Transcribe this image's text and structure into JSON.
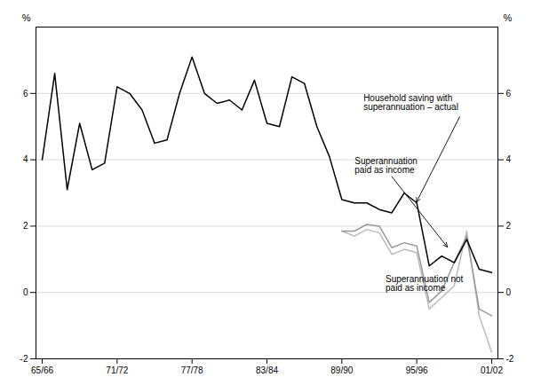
{
  "chart_data": {
    "type": "line",
    "xlim": [
      -0.5,
      36.5
    ],
    "xticks": [
      {
        "value": 0,
        "label": "65/66"
      },
      {
        "value": 6,
        "label": "71/72"
      },
      {
        "value": 12,
        "label": "77/78"
      },
      {
        "value": 18,
        "label": "83/84"
      },
      {
        "value": 24,
        "label": "89/90"
      },
      {
        "value": 30,
        "label": "95/96"
      },
      {
        "value": 36,
        "label": "01/02"
      }
    ],
    "ylim": [
      -2,
      8
    ],
    "yticks": [
      -2,
      0,
      2,
      4,
      6
    ],
    "ylabel": "%",
    "y2lim": [
      -2,
      8
    ],
    "y2ticks": [
      -2,
      0,
      2,
      4,
      6
    ],
    "y2label": "%",
    "grid": true,
    "series": [
      {
        "color": "#000000",
        "x": [
          0,
          1,
          2,
          3,
          4,
          5,
          6,
          7,
          8,
          9,
          10,
          11,
          12,
          13,
          14,
          15,
          16,
          17,
          18,
          19,
          20,
          21,
          22,
          23,
          24,
          25,
          26,
          27,
          28,
          29,
          30,
          31,
          32,
          33,
          34,
          35,
          36
        ],
        "values": [
          4.0,
          6.6,
          3.1,
          5.1,
          3.7,
          3.9,
          6.2,
          6.0,
          5.5,
          4.5,
          4.6,
          6.0,
          7.1,
          6.0,
          5.7,
          5.8,
          5.5,
          6.4,
          5.1,
          5.0,
          6.5,
          6.3,
          5.0,
          4.1,
          2.8,
          2.7,
          2.7,
          2.5,
          2.4,
          3.0,
          2.7,
          0.8,
          1.1,
          0.9,
          1.6,
          0.7,
          0.6
        ]
      },
      {
        "color": "#999999",
        "x": [
          24,
          25,
          26,
          27,
          28,
          29,
          30,
          31,
          32,
          33,
          34,
          35,
          36
        ],
        "values": [
          1.85,
          1.85,
          2.05,
          2.0,
          1.35,
          1.5,
          1.4,
          -0.3,
          0.05,
          0.9,
          1.7,
          -0.5,
          -0.7
        ]
      },
      {
        "color": "#bbbbbb",
        "x": [
          24,
          25,
          26,
          27,
          28,
          29,
          30,
          31,
          32,
          33,
          34,
          35,
          36
        ],
        "values": [
          1.85,
          1.7,
          1.9,
          1.8,
          1.15,
          1.3,
          1.2,
          -0.5,
          -0.15,
          0.2,
          1.85,
          -0.7,
          -1.8
        ]
      }
    ],
    "annotations": [
      {
        "text": "Household saving with\nsuperannuation – actual",
        "x": 30,
        "y": 2.7,
        "arrow": true
      },
      {
        "text": "Superannuation\npaid as income",
        "x": 32.5,
        "y": 1.35,
        "arrow": true
      },
      {
        "text": "Superannuation not\npaid as income",
        "x": 27.5,
        "y": 0.5,
        "arrow": false
      }
    ]
  }
}
